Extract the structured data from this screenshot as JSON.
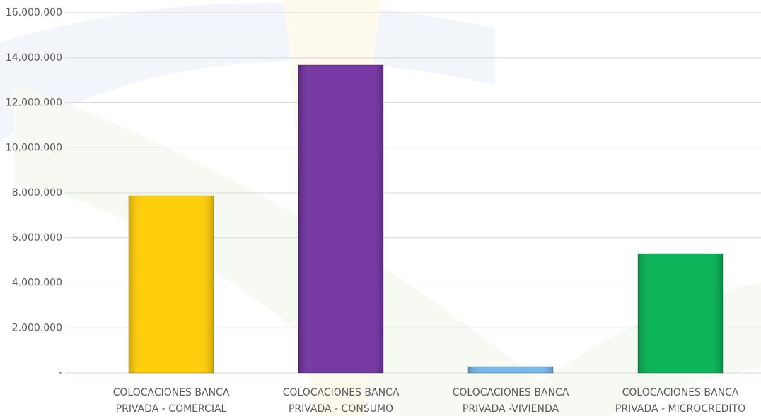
{
  "chart_data": {
    "type": "bar",
    "categories": [
      [
        "COLOCACIONES BANCA",
        "PRIVADA - COMERCIAL"
      ],
      [
        "COLOCACIONES BANCA",
        "PRIVADA - CONSUMO"
      ],
      [
        "COLOCACIONES BANCA",
        "PRIVADA -VIVIENDA"
      ],
      [
        "COLOCACIONES BANCA",
        "PRIVADA - MICROCREDITO"
      ]
    ],
    "values": [
      7870000,
      13680000,
      280000,
      5300000
    ],
    "colors": [
      "#ffcc00",
      "#7030a0",
      "#6fb7ea",
      "#00b050"
    ],
    "ylim": [
      0,
      16000000
    ],
    "yticks": [
      {
        "value": 0,
        "label": "-"
      },
      {
        "value": 2000000,
        "label": "2.000.000"
      },
      {
        "value": 4000000,
        "label": "4.000.000"
      },
      {
        "value": 6000000,
        "label": "6.000.000"
      },
      {
        "value": 8000000,
        "label": "8.000.000"
      },
      {
        "value": 10000000,
        "label": "10.000.000"
      },
      {
        "value": 12000000,
        "label": "12.000.000"
      },
      {
        "value": 14000000,
        "label": "14.000.000"
      },
      {
        "value": 16000000,
        "label": "16.000.000"
      }
    ],
    "grid": true
  }
}
